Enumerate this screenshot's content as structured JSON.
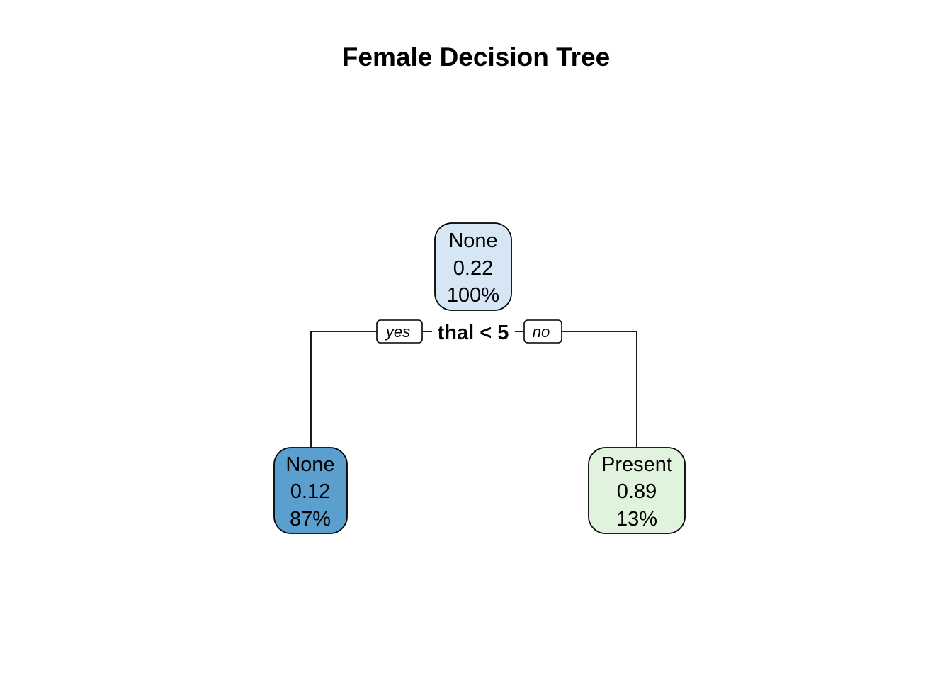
{
  "title": "Female Decision Tree",
  "root": {
    "class": "None",
    "prob": "0.22",
    "percent": "100%",
    "fill": "#d6e6f5"
  },
  "split": {
    "rule": "thal < 5",
    "yes_label": "yes",
    "no_label": "no"
  },
  "left_leaf": {
    "class": "None",
    "prob": "0.12",
    "percent": "87%",
    "fill": "#5a9fce"
  },
  "right_leaf": {
    "class": "Present",
    "prob": "0.89",
    "percent": "13%",
    "fill": "#e0f3dc"
  }
}
